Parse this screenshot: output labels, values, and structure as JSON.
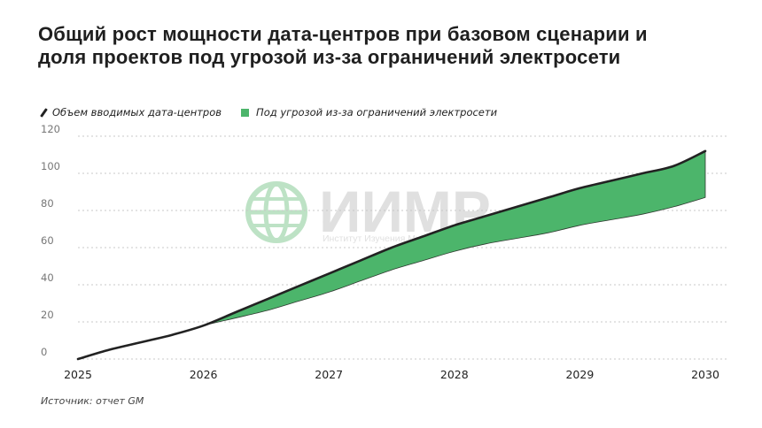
{
  "title": "Общий рост мощности дата-центров при базовом сценарии и доля проектов под угрозой из-за ограничений электросети",
  "legend": {
    "line_label": "Объем вводимых дата-центров",
    "area_label": "Под угрозой из-за ограничений электросети"
  },
  "source": "Источник: отчет GM",
  "watermark": {
    "name": "ИИМР",
    "subtitle": "Институт Изучения Мировых Рынков",
    "icon": "globe-icon"
  },
  "colors": {
    "area": "#4cb56b",
    "line": "#222222",
    "grid": "#c8c8c8",
    "watermark": "#d6d6d6",
    "watermark_icon": "#a8d9b2"
  },
  "chart_data": {
    "type": "area",
    "x": [
      2025,
      2025.25,
      2025.5,
      2025.75,
      2026,
      2026.25,
      2026.5,
      2026.75,
      2027,
      2027.25,
      2027.5,
      2027.75,
      2028,
      2028.25,
      2028.5,
      2028.75,
      2029,
      2029.25,
      2029.5,
      2029.75,
      2030
    ],
    "x_ticks": [
      "2025",
      "2026",
      "2027",
      "2028",
      "2029",
      "2030"
    ],
    "y_ticks": [
      "0",
      "20",
      "40",
      "60",
      "80",
      "100",
      "120"
    ],
    "ylim": [
      0,
      120
    ],
    "grid": true,
    "legend_position": "top-left",
    "series": [
      {
        "name": "Объем вводимых дата-центров",
        "type": "line",
        "values": [
          0,
          5,
          9,
          13,
          18,
          25,
          32,
          39,
          46,
          53,
          60,
          66,
          72,
          77,
          82,
          87,
          92,
          96,
          100,
          104,
          112
        ]
      },
      {
        "name": "Под угрозой из-за ограничений электросети",
        "type": "area_band",
        "lower": [
          0,
          5,
          9,
          13,
          18,
          22,
          26,
          31,
          36,
          42,
          48,
          53,
          58,
          62,
          65,
          68,
          72,
          75,
          78,
          82,
          87
        ]
      }
    ]
  }
}
